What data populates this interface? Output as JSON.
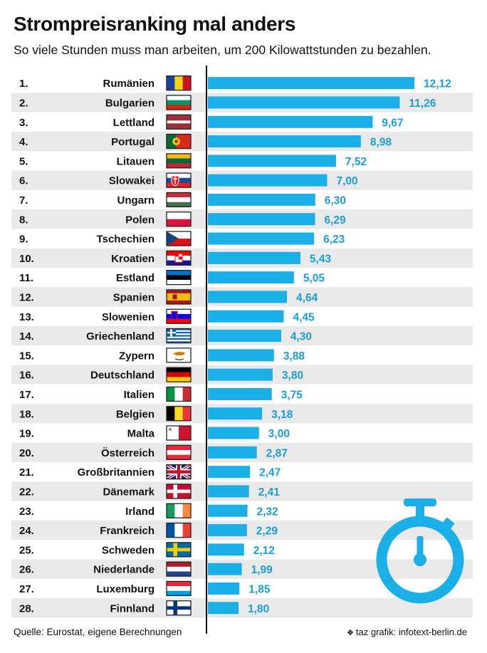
{
  "header": {
    "title": "Strompreisranking mal anders",
    "subtitle": "So viele Stunden muss man arbeiten, um 200 Kilowattstunden zu bezahlen."
  },
  "footer": {
    "source": "Quelle: Eurostat, eigene Berechnungen",
    "credit": "taz grafik: infotext-berlin.de"
  },
  "colors": {
    "bar": "#1aafe6",
    "value_text": "#1a9fd6",
    "row_stripe": "#e9e9e9",
    "axis": "#111111",
    "stopwatch": "#1aafe6"
  },
  "icons": {
    "stopwatch": "stopwatch-icon"
  },
  "chart_data": {
    "type": "bar",
    "orientation": "horizontal",
    "ranks": [
      "1.",
      "2.",
      "3.",
      "4.",
      "5.",
      "6.",
      "7.",
      "8.",
      "9.",
      "10.",
      "11.",
      "12.",
      "13.",
      "14.",
      "15.",
      "16.",
      "17.",
      "18.",
      "19.",
      "20.",
      "21.",
      "22.",
      "23.",
      "24.",
      "25.",
      "26.",
      "27.",
      "28."
    ],
    "categories": [
      "Rumänien",
      "Bulgarien",
      "Lettland",
      "Portugal",
      "Litauen",
      "Slowakei",
      "Ungarn",
      "Polen",
      "Tschechien",
      "Kroatien",
      "Estland",
      "Spanien",
      "Slowenien",
      "Griechenland",
      "Zypern",
      "Deutschland",
      "Italien",
      "Belgien",
      "Malta",
      "Österreich",
      "Großbritannien",
      "Dänemark",
      "Irland",
      "Frankreich",
      "Schweden",
      "Niederlande",
      "Luxemburg",
      "Finnland"
    ],
    "values": [
      12.12,
      11.26,
      9.67,
      8.98,
      7.52,
      7.0,
      6.3,
      6.29,
      6.23,
      5.43,
      5.05,
      4.64,
      4.45,
      4.3,
      3.88,
      3.8,
      3.75,
      3.18,
      3.0,
      2.87,
      2.47,
      2.41,
      2.32,
      2.29,
      2.12,
      1.99,
      1.85,
      1.8
    ],
    "value_labels": [
      "12,12",
      "11,26",
      "9,67",
      "8,98",
      "7,52",
      "7,00",
      "6,30",
      "6,29",
      "6,23",
      "5,43",
      "5,05",
      "4,64",
      "4,45",
      "4,30",
      "3,88",
      "3,80",
      "3,75",
      "3,18",
      "3,00",
      "2,87",
      "2,47",
      "2,41",
      "2,32",
      "2,29",
      "2,12",
      "1,99",
      "1,85",
      "1,80"
    ],
    "flags": [
      "romania-flag",
      "bulgaria-flag",
      "latvia-flag",
      "portugal-flag",
      "lithuania-flag",
      "slovakia-flag",
      "hungary-flag",
      "poland-flag",
      "czechia-flag",
      "croatia-flag",
      "estonia-flag",
      "spain-flag",
      "slovenia-flag",
      "greece-flag",
      "cyprus-flag",
      "germany-flag",
      "italy-flag",
      "belgium-flag",
      "malta-flag",
      "austria-flag",
      "united-kingdom-flag",
      "denmark-flag",
      "ireland-flag",
      "france-flag",
      "sweden-flag",
      "netherlands-flag",
      "luxembourg-flag",
      "finland-flag"
    ],
    "title": "Strompreisranking mal anders",
    "xlabel": "",
    "ylabel": "",
    "xlim": [
      0,
      12.12
    ],
    "grid": false,
    "legend": "none"
  }
}
